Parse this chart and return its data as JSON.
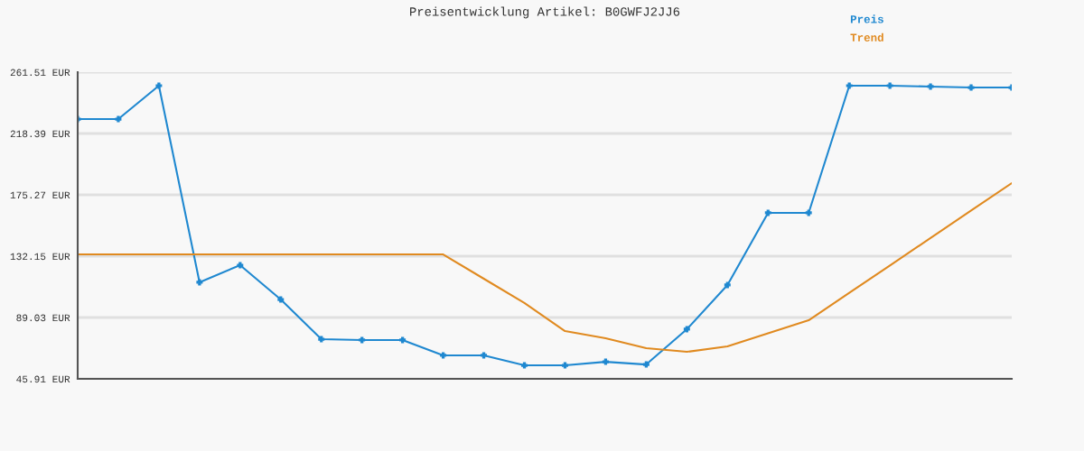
{
  "chart_data": {
    "type": "line",
    "title": "Preisentwicklung Artikel: B0GWFJ2JJ6",
    "categories": [
      null,
      null,
      null,
      null,
      null,
      null,
      null,
      null,
      null,
      null,
      null,
      null,
      null,
      null,
      null,
      null,
      null,
      null,
      null,
      null,
      null,
      null,
      null,
      null
    ],
    "series": [
      {
        "name": "Preis",
        "color": "#1f88d0",
        "marker": "cross",
        "values": [
          228.5,
          228.5,
          252.0,
          113.8,
          125.8,
          101.7,
          73.8,
          73.2,
          73.2,
          62.4,
          62.4,
          55.4,
          55.4,
          57.9,
          56.0,
          80.8,
          111.9,
          162.6,
          162.6,
          252.0,
          252.0,
          251.4,
          250.7,
          250.7
        ]
      },
      {
        "name": "Trend",
        "color": "#e08a20",
        "marker": "none",
        "values": [
          133.4,
          133.4,
          133.4,
          133.4,
          133.4,
          133.4,
          133.4,
          133.4,
          133.4,
          133.4,
          116.3,
          99.2,
          79.5,
          74.4,
          67.5,
          64.9,
          68.7,
          78.0,
          87.1,
          106.4,
          125.6,
          144.9,
          164.2,
          183.5
        ]
      }
    ],
    "ylim": [
      45.91,
      261.51
    ],
    "yticks": [
      {
        "value": 45.91,
        "label": "45.91 EUR"
      },
      {
        "value": 89.03,
        "label": "89.03 EUR"
      },
      {
        "value": 132.15,
        "label": "132.15 EUR"
      },
      {
        "value": 175.27,
        "label": "175.27 EUR"
      },
      {
        "value": 218.39,
        "label": "218.39 EUR"
      },
      {
        "value": 261.51,
        "label": "261.51 EUR"
      }
    ],
    "grid": "y",
    "legend": "top right",
    "line_style": "solid"
  }
}
